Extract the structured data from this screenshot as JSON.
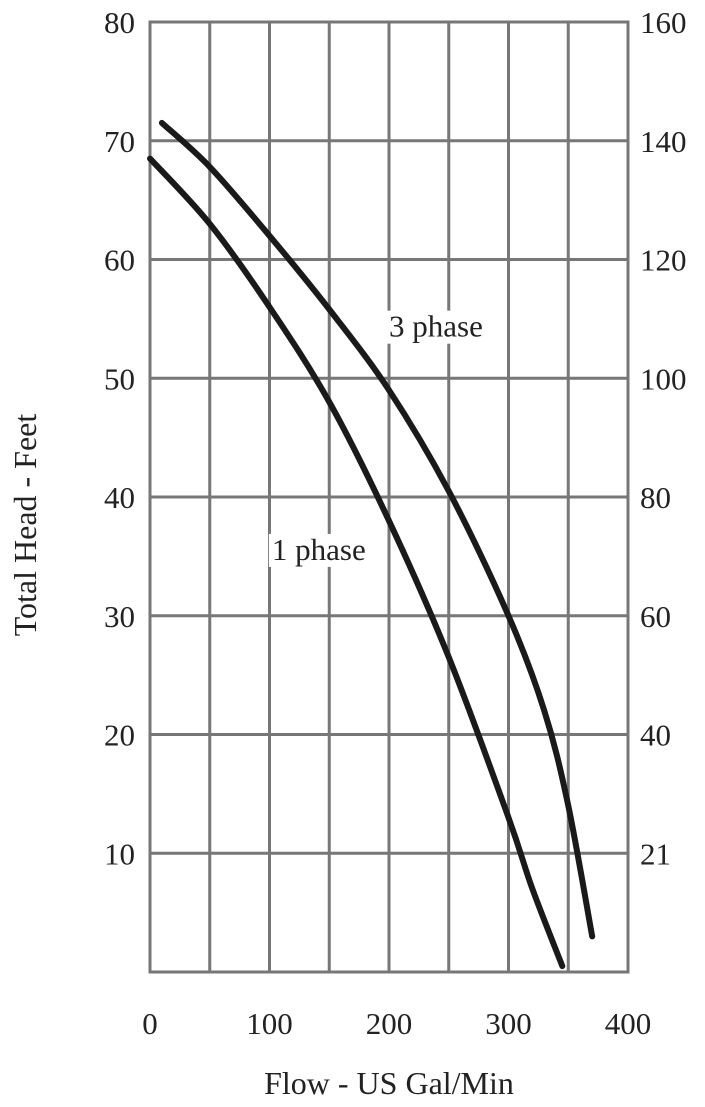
{
  "chart_data": {
    "type": "line",
    "title": "",
    "xlabel": "Flow - US Gal/Min",
    "ylabel": "Total Head - Feet",
    "xlim": [
      0,
      400
    ],
    "ylim": [
      0,
      80
    ],
    "grid": true,
    "x_ticks": [
      "0",
      "100",
      "200",
      "300",
      "400"
    ],
    "y_ticks": [
      "80",
      "70",
      "60",
      "50",
      "40",
      "30",
      "20",
      "10"
    ],
    "y2_ticks": [
      "160",
      "140",
      "120",
      "100",
      "80",
      "60",
      "40",
      "21"
    ],
    "series": [
      {
        "name": "3 phase",
        "x": [
          10,
          50,
          100,
          150,
          200,
          250,
          300,
          330,
          350,
          370
        ],
        "y": [
          71.5,
          67.8,
          62.0,
          55.8,
          49.0,
          40.5,
          30.0,
          22.0,
          14.0,
          3.0
        ]
      },
      {
        "name": "1 phase",
        "x": [
          0,
          50,
          100,
          150,
          200,
          250,
          300,
          320,
          345
        ],
        "y": [
          68.5,
          63.0,
          56.0,
          48.0,
          38.0,
          26.5,
          13.0,
          7.0,
          0.5
        ]
      }
    ]
  }
}
